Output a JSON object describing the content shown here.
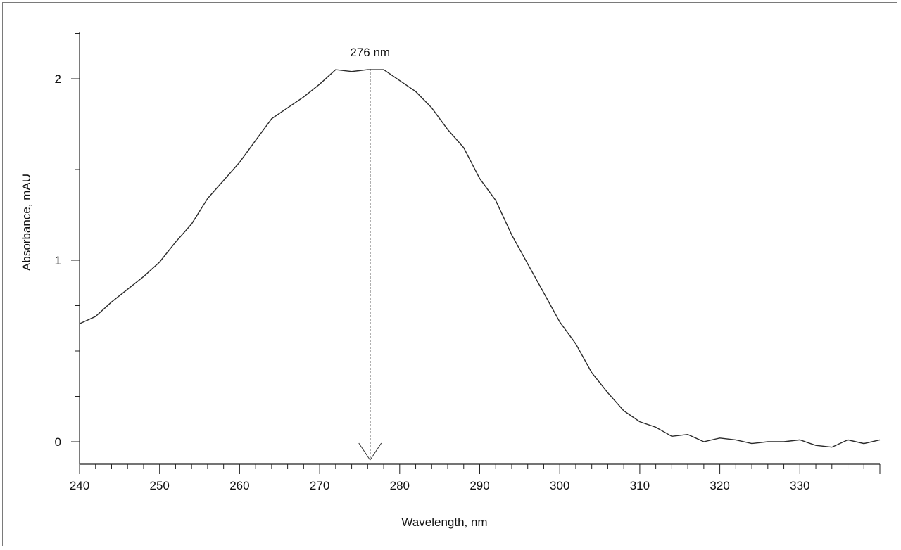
{
  "chart_data": {
    "type": "line",
    "xlabel": "Wavelength, nm",
    "ylabel": "Absorbance, mAU",
    "xlim": [
      240,
      340
    ],
    "ylim": [
      -0.1,
      2.25
    ],
    "x_ticks": [
      240,
      250,
      260,
      270,
      280,
      290,
      300,
      310,
      320,
      330
    ],
    "y_ticks": [
      0,
      1,
      2
    ],
    "x_tick_labels": [
      "240",
      "250",
      "260",
      "270",
      "280",
      "290",
      "300",
      "310",
      "320",
      "330"
    ],
    "y_tick_labels": [
      "0",
      "1",
      "2"
    ],
    "grid": false,
    "annotation": {
      "text": "276 nm",
      "x": 276.3
    },
    "series": [
      {
        "x": [
          240,
          242,
          244,
          246,
          248,
          250,
          252,
          254,
          256,
          258,
          260,
          262,
          264,
          266,
          268,
          270,
          272,
          274,
          276,
          278,
          280,
          282,
          284,
          286,
          288,
          290,
          292,
          294,
          296,
          298,
          300,
          302,
          304,
          306,
          308,
          310,
          312,
          314,
          316,
          318,
          320,
          322,
          324,
          326,
          328,
          330,
          332,
          334,
          336,
          338,
          340
        ],
        "values": [
          0.65,
          0.69,
          0.77,
          0.84,
          0.91,
          0.99,
          1.1,
          1.2,
          1.34,
          1.44,
          1.54,
          1.66,
          1.78,
          1.84,
          1.9,
          1.97,
          2.05,
          2.04,
          2.05,
          2.05,
          1.99,
          1.93,
          1.84,
          1.72,
          1.62,
          1.45,
          1.33,
          1.14,
          0.98,
          0.82,
          0.66,
          0.54,
          0.38,
          0.27,
          0.17,
          0.11,
          0.08,
          0.03,
          0.04,
          0.0,
          0.02,
          0.01,
          -0.01,
          0.0,
          0.0,
          0.01,
          -0.02,
          -0.03,
          0.01,
          -0.01,
          0.01
        ]
      }
    ]
  }
}
